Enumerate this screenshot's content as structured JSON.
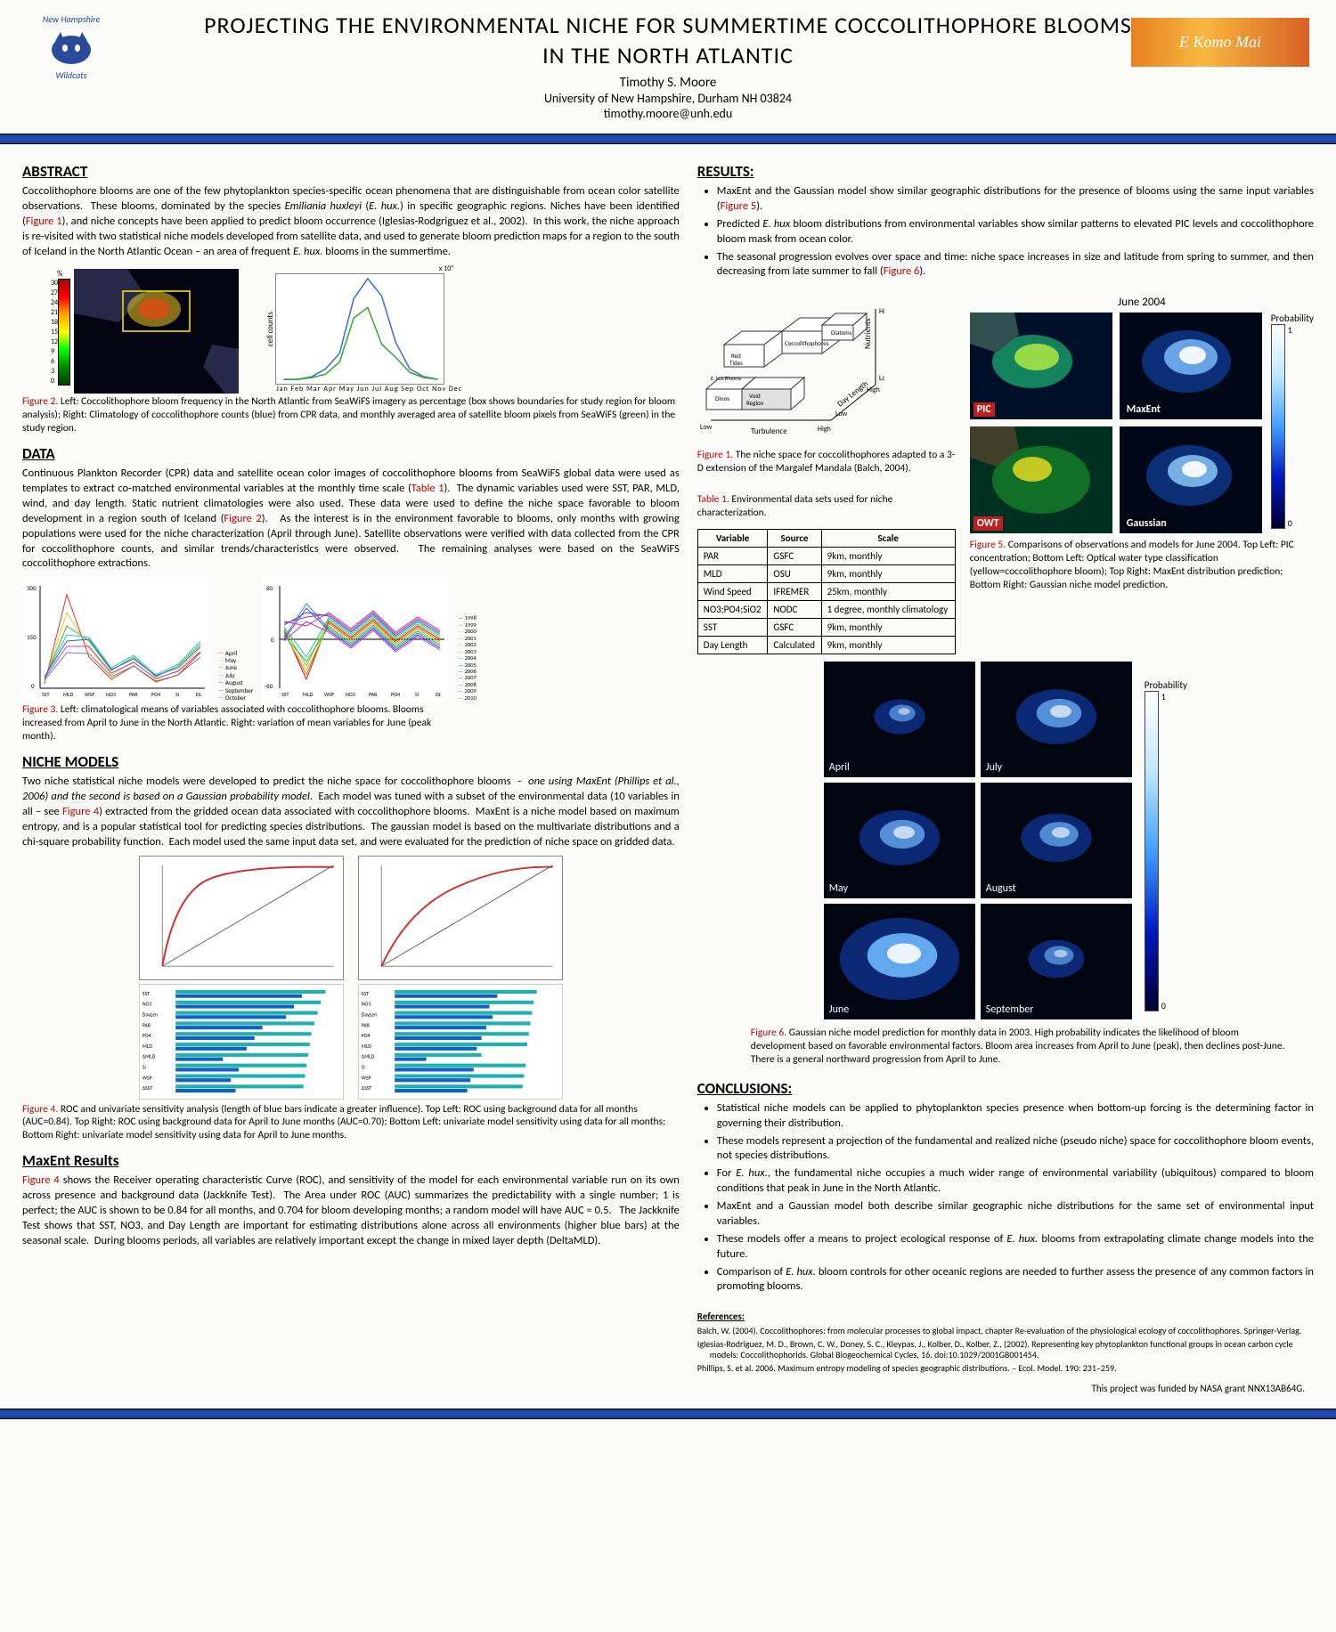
{
  "header": {
    "title_l1": "PROJECTING THE ENVIRONMENTAL NICHE FOR SUMMERTIME COCCOLITHOPHORE BLOOMS",
    "title_l2": "IN THE NORTH ATLANTIC",
    "author": "Timothy S. Moore",
    "affiliation": "University of New Hampshire, Durham NH 03824",
    "email": "timothy.moore@unh.edu",
    "logo_left_top": "New Hampshire",
    "logo_left_bottom": "Wildcats",
    "logo_right_text": "E Komo Mai"
  },
  "abstract": {
    "head": "ABSTRACT",
    "body": "Coccolithophore blooms are one of the few phytoplankton species-specific ocean phenomena that are distinguishable from ocean color satellite observations.  These blooms, dominated by the species Emiliania huxleyi (E. hux.) in specific geographic regions. Niches have been identified (Figure 1), and niche concepts have been applied to predict bloom occurrence (Iglesias-Rodgriguez et al., 2002).  In this work, the niche approach is re-visited with two statistical niche models developed from satellite data, and used to generate bloom prediction maps for a region to the south of Iceland in the North Atlantic Ocean – an area of frequent E. hux. blooms in the summertime."
  },
  "fig2": {
    "label": "Figure 2.",
    "caption": "Left: Coccolithophore bloom frequency in the North Atlantic from SeaWiFS imagery as percentage (box shows boundaries for study region for bloom analysis); Right: Climatology of coccolithophore counts (blue) from CPR data, and monthly averaged area of satellite bloom pixels from SeaWiFS (green) in the study region.",
    "colorbar_unit": "%",
    "colorbar_ticks": [
      "30",
      "27",
      "24",
      "21",
      "18",
      "15",
      "12",
      "9",
      "6",
      "3",
      "0"
    ],
    "months": "Jan Feb Mar Apr May Jun Jul Aug Sep Oct Nov Dec",
    "ylabel_right": "cell counts",
    "yexp": "x 10⁴",
    "map_colors": {
      "land": "#303048",
      "ocean": "#050510"
    },
    "line_colors": {
      "cpr": "#3a6ad8",
      "sat": "#2aa82a"
    },
    "blue_series": [
      0,
      0,
      0.2,
      0.6,
      1.5,
      4.2,
      5.4,
      4.4,
      2.2,
      0.6,
      0.2,
      0
    ],
    "green_series": [
      0,
      0,
      0.1,
      0.3,
      1.0,
      3.4,
      3.8,
      2.0,
      1.2,
      0.4,
      0.1,
      0
    ]
  },
  "data": {
    "head": "DATA",
    "body": "Continuous Plankton Recorder (CPR) data and satellite ocean color images of coccolithophore blooms from SeaWiFS global data were used as templates to extract co-matched environmental variables at the monthly time scale (Table 1).  The dynamic variables used were SST, PAR, MLD, wind, and day length. Static nutrient climatologies were also used. These data were used to define the niche space favorable to bloom development in a region south of Iceland (Figure 2).   As the interest is in the environment favorable to blooms, only months with growing populations were used for the niche characterization (April through June). Satellite observations were verified with data collected from the CPR for coccolithophore counts, and similar trends/characteristics were observed.   The remaining analyses were based on the SeaWiFS coccolithophore extractions."
  },
  "fig3": {
    "label": "Figure 3.",
    "caption": "Left: climatological means of variables associated with coccolithophore blooms.  Blooms increased from April to June in the North Atlantic.  Right:  variation of mean variables for June (peak month).",
    "x_labels": [
      "SST",
      "MLD",
      "WSP",
      "NO3",
      "PAR",
      "PO4",
      "Si",
      "DL"
    ],
    "left_legend": [
      "April",
      "May",
      "June",
      "July",
      "August",
      "September",
      "October"
    ],
    "left_legend_colors": [
      "#e03030",
      "#e8d020",
      "#30c030",
      "#30c0c0",
      "#3060d0",
      "#c040c0",
      "#808080"
    ],
    "right_legend": [
      "1998",
      "1999",
      "2000",
      "2001",
      "2002",
      "2003",
      "2004",
      "2005",
      "2006",
      "2007",
      "2008",
      "2009",
      "2010"
    ],
    "right_legend_colors": [
      "#c02020",
      "#e06020",
      "#d0c020",
      "#80c020",
      "#20c040",
      "#20c0a0",
      "#2090d0",
      "#2050d0",
      "#5030d0",
      "#9030d0",
      "#d030c0",
      "#d03080",
      "#808080"
    ],
    "left_ymax": 300,
    "right_ymin": -60,
    "right_ymax": 60
  },
  "niche": {
    "head": "NICHE MODELS",
    "body": "Two niche statistical niche models were developed to predict the niche space for coccolithophore blooms  -  one using MaxEnt (Phillips et al., 2006) and the second is based on a Gaussian probability model.   Each model was tuned with a subset of the environmental data (10 variables in all – see Figure 4) extracted from the gridded ocean data associated with coccolithophore blooms.   MaxEnt is a niche model based on maximum entropy, and is a popular statistical tool for predicting species distributions.  The gaussian model is based on the multivariate distributions and a chi-square probability function.  Each model used the same input data set, and were evaluated for the prediction of niche space on gridded data."
  },
  "fig4": {
    "label": "Figure 4.",
    "caption": "ROC and univariate sensitivity analysis (length of blue bars indicate a greater influence).  Top Left: ROC using background data for all months  (AUC=0.84).  Top Right: ROC using background data for April to June months  (AUC=0.70); Bottom Left: univariate model sensitivity using data for all months; Bottom Right: univariate model sensitivity using data for April to June months.",
    "roc_color": "#d03030",
    "bar_colors": {
      "with": "#20b0b0",
      "without": "#1060c0"
    },
    "bar_vars": [
      "SST",
      "NO3",
      "DayLen",
      "PAR",
      "PO4",
      "MLD",
      "ΔMLD",
      "Si",
      "WSP",
      "ΔSST"
    ]
  },
  "maxent": {
    "head": "MaxEnt Results",
    "body": "Figure 4 shows the Receiver operating characteristic Curve (ROC), and sensitivity of the model for each environmental variable run on its own across presence and background data (Jackknife Test).   The Area under ROC (AUC) summarizes the predictability with a single number; 1 is perfect; the AUC is shown to be 0.84 for all months, and 0.704 for bloom developing months; a random model will have AUC = 0.5.    The Jackknife Test shows that SST, NO3, and Day Length are important for estimating distributions alone across all environments (higher blue bars) at the seasonal scale.   During blooms periods, all variables are relatively important except the change in mixed layer depth (DeltaMLD)."
  },
  "fig1": {
    "label": "Figure 1.",
    "caption": "The niche space for coccolithophores adapted to a 3-D extension of the Margalef Mandala (Balch, 2004).",
    "axes": {
      "x": "Turbulence",
      "y": "Nutrients",
      "z": "Day Length"
    },
    "axis_ends": {
      "low": "Low",
      "high": "High"
    },
    "boxes": [
      "Red Tides",
      "Coccolithophores",
      "Diatoms",
      "Dinos",
      "E. hux Blooms",
      "Void Region"
    ]
  },
  "table1": {
    "label": "Table 1.",
    "caption": "Environmental data sets used for niche characterization.",
    "columns": [
      "Variable",
      "Source",
      "Scale"
    ],
    "rows": [
      [
        "PAR",
        "GSFC",
        "9km, monthly"
      ],
      [
        "MLD",
        "OSU",
        "9km, monthly"
      ],
      [
        "Wind Speed",
        "IFREMER",
        "25km, monthly"
      ],
      [
        "NO3;PO4;SiO2",
        "NODC",
        "1 degree, monthly climatology"
      ],
      [
        "SST",
        "GSFC",
        "9km, monthly"
      ],
      [
        "Day Length",
        "Calculated",
        "9km, monthly"
      ]
    ]
  },
  "results": {
    "head": "RESULTS:",
    "bullets": [
      "MaxEnt and the Gaussian model show similar geographic distributions for the presence of blooms using the same input variables (Figure 5).",
      "Predicted E. hux bloom distributions from environmental variables show similar patterns to elevated PIC levels and coccolithophore bloom mask from ocean color.",
      "The seasonal progression evolves over space and time: niche space increases in size and latitude from spring to summer, and then decreasing from late summer to fall (Figure 6)."
    ]
  },
  "fig5": {
    "title_above": "June 2004",
    "panels": [
      "PIC",
      "MaxEnt",
      "OWT",
      "Gaussian"
    ],
    "prob_label": "Probability",
    "prob_ticks": [
      "1",
      "0"
    ],
    "label": "Figure 5.",
    "caption": "Comparisons of observations and models for June 2004.  Top Left: PIC concentration; Bottom Left: Optical water type classification (yellow=coccolithophore bloom); Top Right: MaxEnt distribution prediction; Bottom Right: Gaussian niche model prediction."
  },
  "fig6": {
    "panels": [
      "April",
      "July",
      "May",
      "August",
      "June",
      "September"
    ],
    "prob_label": "Probability",
    "prob_ticks": [
      "1",
      "0"
    ],
    "label": "Figure 6.",
    "caption": "Gaussian niche model prediction for monthly data in 2003.   High probability indicates the likelihood of bloom development based on favorable environmental factors.  Bloom area increases from April to June (peak), then declines post-June.  There is a general northward progression from April to June."
  },
  "conclusions": {
    "head": "CONCLUSIONS:",
    "bullets": [
      "Statistical niche models can be applied to phytoplankton species presence when bottom-up forcing is the determining factor in governing their distribution.",
      "These models represent a projection of the fundamental and realized niche (pseudo niche) space for coccolithophore bloom events, not species distributions.",
      "For E. hux., the fundamental niche occupies a much wider range of environmental variability (ubiquitous) compared to bloom conditions that peak in June in the North Atlantic.",
      "MaxEnt and a Gaussian model both describe similar geographic niche distributions for the same set of environmental input variables.",
      "These models offer a means to project ecological response of E. hux. blooms from extrapolating climate change models into the future.",
      "Comparison of E. hux. bloom controls for other oceanic regions are needed to further assess the presence of any common factors in promoting blooms."
    ]
  },
  "refs": {
    "head": "References:",
    "items": [
      "Balch, W. (2004). Coccolithophores: from molecular processes to global impact, chapter Re-evaluation of the physiological ecology of coccolithophores. Springer-Verlag.",
      "Iglesias-Rodriguez, M. D., Brown, C. W., Doney, S. C., Kleypas, J., Kolber, D., Kolber, Z., (2002). Representing key phytoplankton functional groups in ocean carbon cycle models: Coccolithophorids. Global Biogeochemical Cycles, 16. doi:10.1029/2001GB001454.",
      "Phillips, S. et al. 2006. Maximum entropy modeling of species geographic distributions. – Ecol. Model. 190: 231–259."
    ]
  },
  "funding": "This project was funded by NASA grant NNX13AB64G.",
  "palette": {
    "fig_ref": "#c00000",
    "bar_blue": "#1a3a8a",
    "prob_grad": [
      "#ffffff",
      "#c0e8ff",
      "#0040c0",
      "#000020"
    ]
  }
}
